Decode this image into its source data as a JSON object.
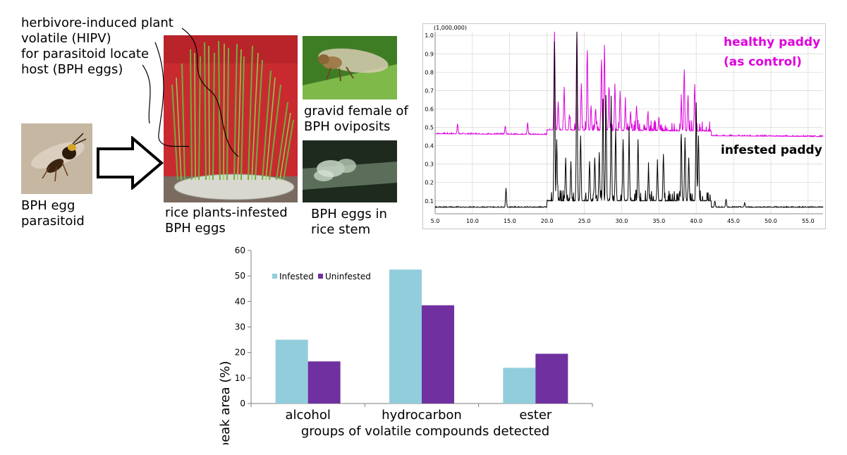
{
  "figure": {
    "hipv_lines": [
      "herbivore-induced plant",
      "volatile (HIPV)",
      "for parasitoid locate",
      "host (BPH eggs)"
    ],
    "parasitoid_lines": [
      "BPH egg",
      "parasitoid"
    ],
    "rice_lines": [
      "rice plants-infested",
      "BPH eggs"
    ],
    "female_lines": [
      "gravid female of",
      "BPH oviposits"
    ],
    "eggs_lines": [
      "BPH eggs in",
      "rice stem"
    ]
  },
  "chromatogram": {
    "scale_label": "(1,000,000)",
    "healthy_lines": [
      "healthy paddy",
      "(as control)"
    ],
    "infested_label": "infested paddy",
    "healthy_color": "#dd00dd",
    "infested_color": "#000000",
    "y_ticks": [
      "1.0",
      "0.9",
      "0.8",
      "0.7",
      "0.6",
      "0.5",
      "0.4",
      "0.3",
      "0.2",
      "0.1"
    ],
    "x_ticks": [
      "5.0",
      "10.0",
      "15.0",
      "20.0",
      "25.0",
      "30.0",
      "35.0",
      "40.0",
      "45.0",
      "50.0",
      "55.0"
    ],
    "x_range": [
      5.0,
      57.0
    ],
    "y_range": [
      0.03,
      1.02
    ]
  },
  "chart_data": {
    "type": "bar",
    "categories": [
      "alcohol",
      "hydrocarbon",
      "ester"
    ],
    "series": [
      {
        "name": "Infested",
        "values": [
          25,
          52.5,
          14
        ],
        "color": "#92cddc"
      },
      {
        "name": "Uninfested",
        "values": [
          16.5,
          38.5,
          19.5
        ],
        "color": "#7030a0"
      }
    ],
    "xlabel": "groups of volatile compounds detected",
    "ylabel": "peak area (%)",
    "ylim": [
      0,
      60
    ],
    "y_ticks": [
      0,
      10,
      20,
      30,
      40,
      50,
      60
    ],
    "legend_position": "top-left",
    "grid": false
  }
}
